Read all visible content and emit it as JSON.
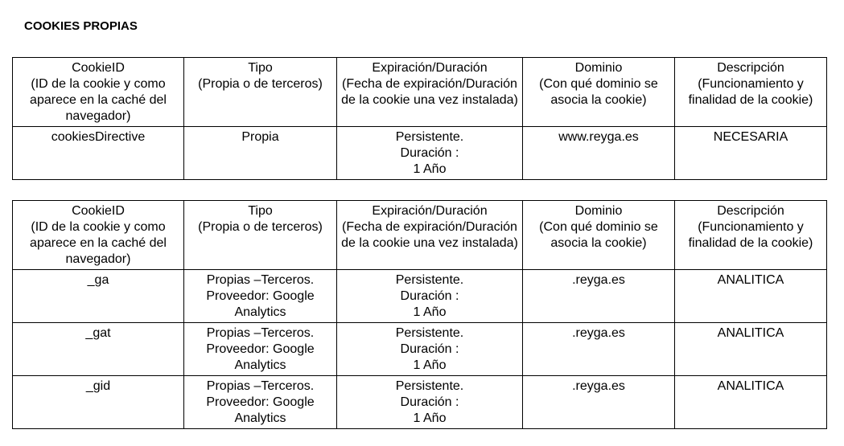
{
  "title": "COOKIES PROPIAS",
  "headers": [
    "CookieID\n(ID de la cookie y como aparece en la caché del navegador)",
    "Tipo\n(Propia o de terceros)",
    "Expiración/Duración\n(Fecha de expiración/Duración de la cookie una vez instalada)",
    "Dominio\n(Con qué dominio se asocia la cookie)",
    "Descripción\n(Funcionamiento y finalidad de la cookie)"
  ],
  "table1": {
    "rows": [
      [
        "cookiesDirective",
        "Propia",
        "Persistente.\nDuración :\n1 Año",
        "www.reyga.es",
        "NECESARIA"
      ]
    ]
  },
  "table2": {
    "rows": [
      [
        "_ga",
        "Propias –Terceros.\nProveedor: Google Analytics",
        "Persistente.\nDuración :\n1 Año",
        ".reyga.es",
        "ANALITICA"
      ],
      [
        "_gat",
        "Propias –Terceros.\nProveedor: Google Analytics",
        "Persistente.\nDuración :\n1 Año",
        ".reyga.es",
        "ANALITICA"
      ],
      [
        "_gid",
        "Propias –Terceros.\nProveedor: Google Analytics",
        "Persistente.\nDuración :\n1 Año",
        ".reyga.es",
        "ANALITICA"
      ]
    ]
  }
}
